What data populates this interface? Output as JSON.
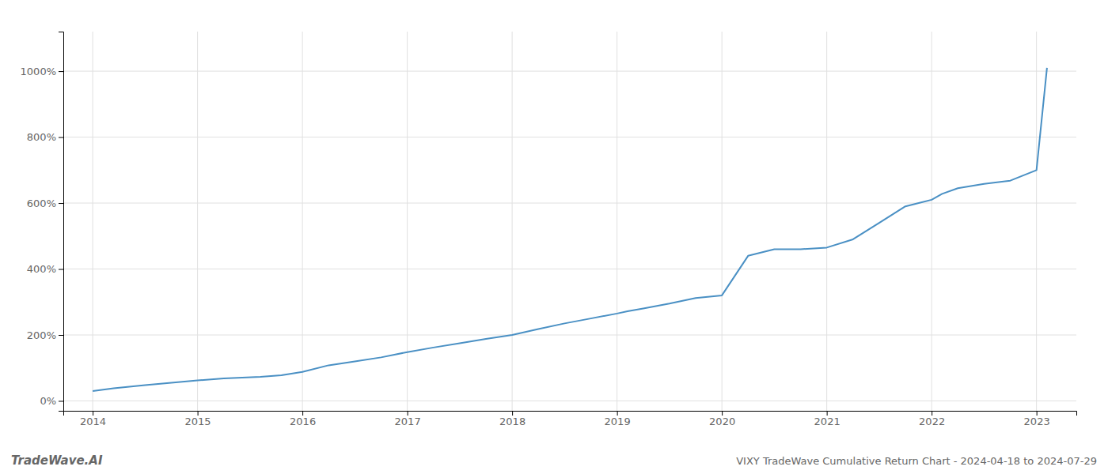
{
  "chart_data": {
    "type": "line",
    "annotations": [
      "TradeWave.AI",
      "VIXY TradeWave Cumulative Return Chart - 2024-04-18 to 2024-07-29"
    ],
    "x": [
      2014.0,
      2014.2,
      2014.5,
      2014.75,
      2015.0,
      2015.25,
      2015.6,
      2015.8,
      2016.0,
      2016.25,
      2016.5,
      2016.75,
      2017.0,
      2017.25,
      2017.5,
      2017.75,
      2018.0,
      2018.25,
      2018.5,
      2018.75,
      2019.0,
      2019.1,
      2019.25,
      2019.5,
      2019.75,
      2020.0,
      2020.25,
      2020.5,
      2020.75,
      2021.0,
      2021.25,
      2021.5,
      2021.75,
      2022.0,
      2022.1,
      2022.25,
      2022.5,
      2022.75,
      2023.0,
      2023.1
    ],
    "values": [
      30,
      38,
      48,
      55,
      62,
      68,
      73,
      78,
      88,
      108,
      120,
      132,
      148,
      162,
      175,
      188,
      200,
      218,
      235,
      250,
      265,
      272,
      280,
      295,
      312,
      320,
      440,
      460,
      460,
      465,
      490,
      540,
      590,
      610,
      628,
      645,
      658,
      668,
      700,
      1010
    ],
    "color": "#4a90c4",
    "xlim": [
      2013.72,
      2023.38
    ],
    "xticks": [
      2014,
      2015,
      2016,
      2017,
      2018,
      2019,
      2020,
      2021,
      2022,
      2023
    ],
    "ylim": [
      -30,
      1120
    ],
    "yticks": [
      {
        "value": 0,
        "label": "0%"
      },
      {
        "value": 200,
        "label": "200%"
      },
      {
        "value": 400,
        "label": "400%"
      },
      {
        "value": 600,
        "label": "600%"
      },
      {
        "value": 800,
        "label": "800%"
      },
      {
        "value": 1000,
        "label": "1000%"
      }
    ],
    "grid": true
  }
}
